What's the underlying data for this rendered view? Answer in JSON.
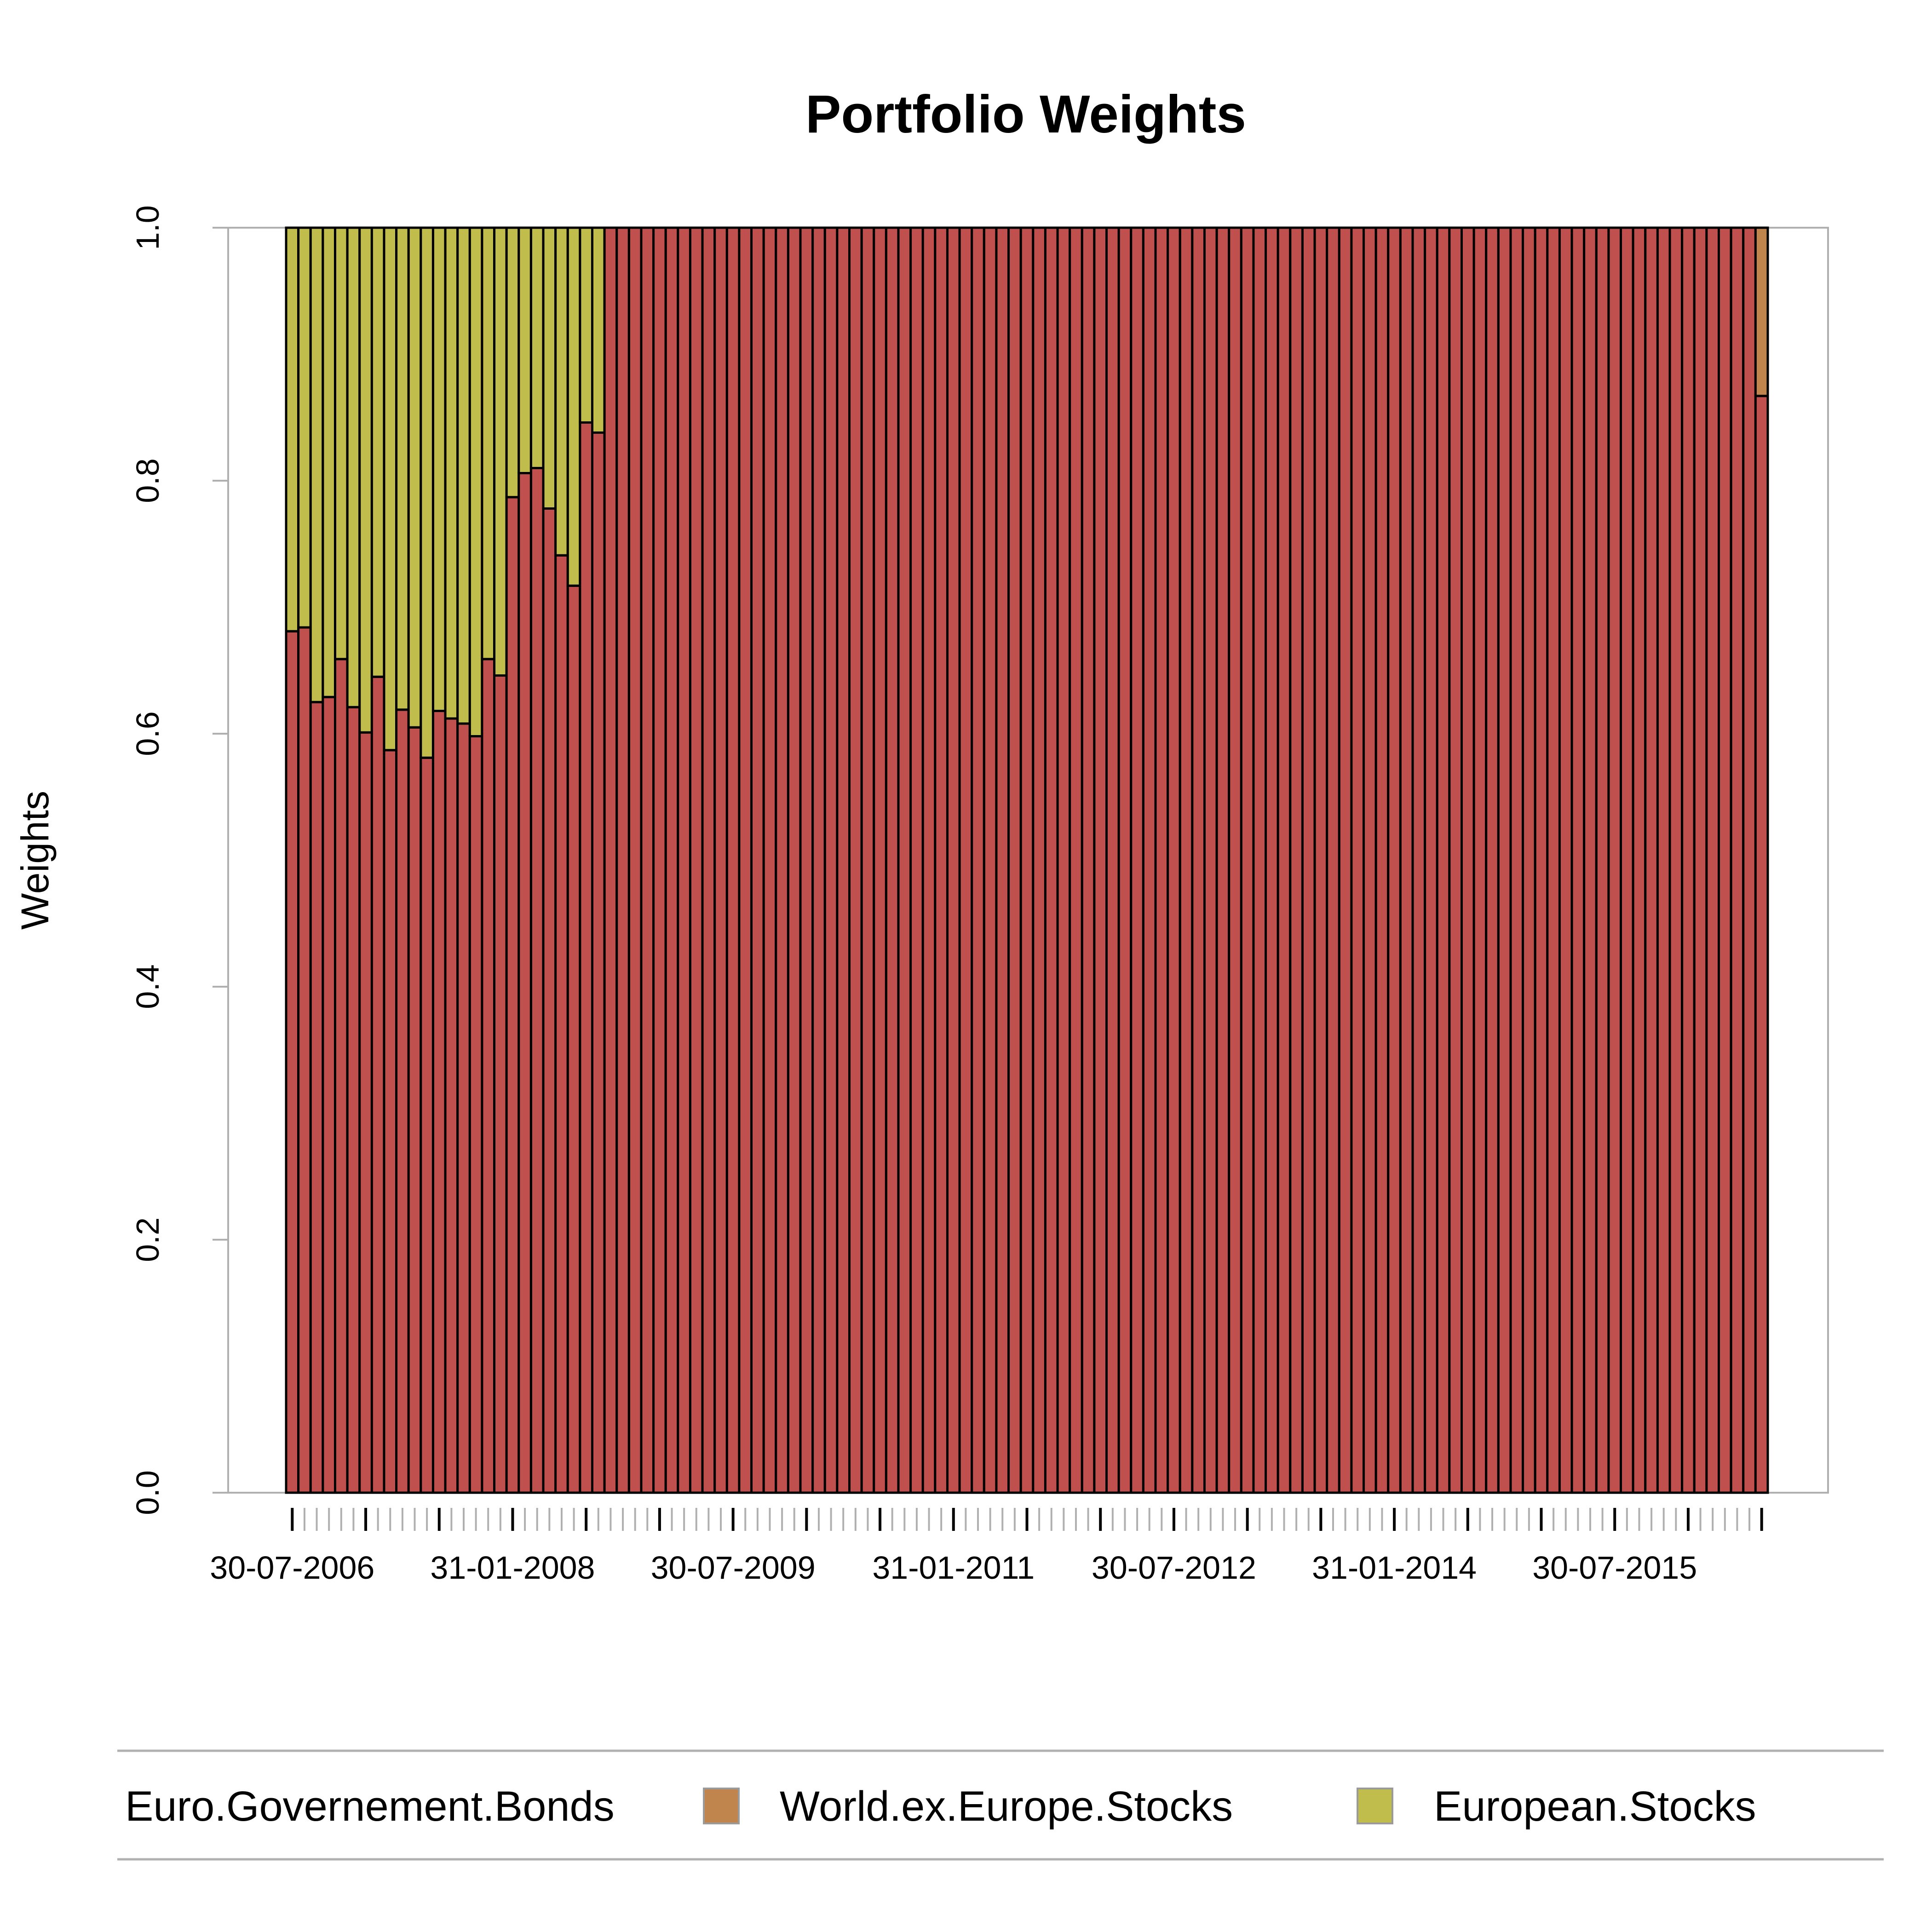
{
  "chart_data": {
    "type": "bar",
    "stacked": true,
    "title": "Portfolio Weights",
    "xlabel": "",
    "ylabel": "Weights",
    "ylim": [
      0,
      1
    ],
    "yticks": [
      0.0,
      0.2,
      0.4,
      0.6,
      0.8,
      1.0
    ],
    "ytick_labels": [
      "0.0",
      "0.2",
      "0.4",
      "0.6",
      "0.8",
      "1.0"
    ],
    "x_tick_labels": [
      "30-07-2006",
      "31-01-2008",
      "30-07-2009",
      "31-01-2011",
      "30-07-2012",
      "31-01-2014",
      "30-07-2015"
    ],
    "x_tick_label_bar_index": [
      0,
      18,
      36,
      54,
      72,
      90,
      108
    ],
    "bar_count": 121,
    "grid": false,
    "legend_position": "bottom",
    "colors": {
      "Euro.Governement.Bonds": "#C0504D",
      "World.ex.Europe.Stocks": "#C0844D",
      "European.Stocks": "#C0BD4D",
      "bar_outline": "#000000",
      "axis": "#b0b0b0"
    },
    "series": [
      {
        "name": "Euro.Governement.Bonds",
        "values": [
          0.681,
          0.684,
          0.625,
          0.629,
          0.659,
          0.621,
          0.601,
          0.645,
          0.587,
          0.619,
          0.605,
          0.581,
          0.618,
          0.612,
          0.608,
          0.598,
          0.659,
          0.646,
          0.787,
          0.806,
          0.81,
          0.778,
          0.741,
          0.717,
          0.846,
          0.838,
          1,
          1,
          1,
          1,
          1,
          1,
          1,
          1,
          1,
          1,
          1,
          1,
          1,
          1,
          1,
          1,
          1,
          1,
          1,
          1,
          1,
          1,
          1,
          1,
          1,
          1,
          1,
          1,
          1,
          1,
          1,
          1,
          1,
          1,
          1,
          1,
          1,
          1,
          1,
          1,
          1,
          1,
          1,
          1,
          1,
          1,
          1,
          1,
          1,
          1,
          1,
          1,
          1,
          1,
          1,
          1,
          1,
          1,
          1,
          1,
          1,
          1,
          1,
          1,
          1,
          1,
          1,
          1,
          1,
          1,
          1,
          1,
          1,
          1,
          1,
          1,
          1,
          1,
          1,
          1,
          1,
          1,
          1,
          1,
          1,
          1,
          1,
          1,
          1,
          1,
          1,
          1,
          1,
          1,
          0.867
        ]
      },
      {
        "name": "World.ex.Europe.Stocks",
        "values": [
          0,
          0,
          0,
          0,
          0,
          0,
          0,
          0,
          0,
          0,
          0,
          0,
          0,
          0,
          0,
          0,
          0,
          0,
          0,
          0,
          0,
          0,
          0,
          0,
          0,
          0,
          0,
          0,
          0,
          0,
          0,
          0,
          0,
          0,
          0,
          0,
          0,
          0,
          0,
          0,
          0,
          0,
          0,
          0,
          0,
          0,
          0,
          0,
          0,
          0,
          0,
          0,
          0,
          0,
          0,
          0,
          0,
          0,
          0,
          0,
          0,
          0,
          0,
          0,
          0,
          0,
          0,
          0,
          0,
          0,
          0,
          0,
          0,
          0,
          0,
          0,
          0,
          0,
          0,
          0,
          0,
          0,
          0,
          0,
          0,
          0,
          0,
          0,
          0,
          0,
          0,
          0,
          0,
          0,
          0,
          0,
          0,
          0,
          0,
          0,
          0,
          0,
          0,
          0,
          0,
          0,
          0,
          0,
          0,
          0,
          0,
          0,
          0,
          0,
          0,
          0,
          0,
          0,
          0,
          0,
          0.133
        ]
      },
      {
        "name": "European.Stocks",
        "values": [
          0.319,
          0.316,
          0.375,
          0.371,
          0.341,
          0.379,
          0.399,
          0.355,
          0.413,
          0.381,
          0.395,
          0.419,
          0.382,
          0.388,
          0.392,
          0.402,
          0.341,
          0.354,
          0.213,
          0.194,
          0.19,
          0.222,
          0.259,
          0.283,
          0.154,
          0.162,
          0,
          0,
          0,
          0,
          0,
          0,
          0,
          0,
          0,
          0,
          0,
          0,
          0,
          0,
          0,
          0,
          0,
          0,
          0,
          0,
          0,
          0,
          0,
          0,
          0,
          0,
          0,
          0,
          0,
          0,
          0,
          0,
          0,
          0,
          0,
          0,
          0,
          0,
          0,
          0,
          0,
          0,
          0,
          0,
          0,
          0,
          0,
          0,
          0,
          0,
          0,
          0,
          0,
          0,
          0,
          0,
          0,
          0,
          0,
          0,
          0,
          0,
          0,
          0,
          0,
          0,
          0,
          0,
          0,
          0,
          0,
          0,
          0,
          0,
          0,
          0,
          0,
          0,
          0,
          0,
          0,
          0,
          0,
          0,
          0,
          0,
          0,
          0,
          0,
          0,
          0,
          0,
          0,
          0,
          0
        ]
      }
    ]
  }
}
